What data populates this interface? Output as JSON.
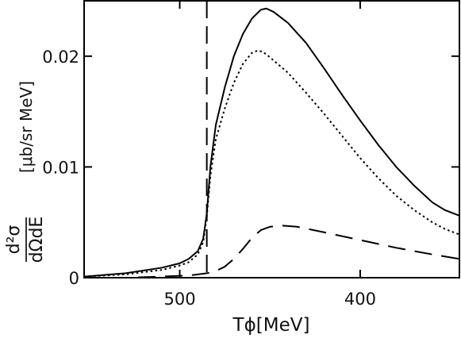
{
  "chart_data": {
    "type": "line",
    "title": "",
    "xlabel": "Tϕ[MeV]",
    "ylabel": {
      "numerator": "d²σ",
      "denominator": "dΩdE",
      "unit": "[μb/sr MeV]"
    },
    "x_reversed": true,
    "xlim": [
      553,
      345
    ],
    "ylim": [
      0,
      0.025
    ],
    "x_ticks": [
      500,
      400
    ],
    "x_tick_labels": [
      "500",
      "400"
    ],
    "y_ticks": [
      0,
      0.01,
      0.02
    ],
    "y_tick_labels": [
      "0",
      "0.01",
      "0.02"
    ],
    "vertical_marker": {
      "x": 485,
      "style": "dashed"
    },
    "grid": false,
    "series": [
      {
        "style": "solid",
        "color": "#000000",
        "points": [
          [
            553,
            0.0001
          ],
          [
            530,
            0.0004
          ],
          [
            510,
            0.0009
          ],
          [
            500,
            0.0013
          ],
          [
            495,
            0.0017
          ],
          [
            490,
            0.0024
          ],
          [
            487,
            0.0035
          ],
          [
            485,
            0.0058
          ],
          [
            483,
            0.01
          ],
          [
            480,
            0.0138
          ],
          [
            475,
            0.0172
          ],
          [
            470,
            0.02
          ],
          [
            465,
            0.022
          ],
          [
            460,
            0.0234
          ],
          [
            455,
            0.0242
          ],
          [
            452,
            0.0243
          ],
          [
            448,
            0.024
          ],
          [
            440,
            0.023
          ],
          [
            430,
            0.0212
          ],
          [
            420,
            0.0189
          ],
          [
            410,
            0.0165
          ],
          [
            400,
            0.0142
          ],
          [
            390,
            0.012
          ],
          [
            380,
            0.01
          ],
          [
            370,
            0.0083
          ],
          [
            360,
            0.0068
          ],
          [
            353,
            0.0061
          ],
          [
            345,
            0.0056
          ]
        ]
      },
      {
        "style": "dotted",
        "color": "#000000",
        "points": [
          [
            553,
            0.0001
          ],
          [
            530,
            0.0003
          ],
          [
            510,
            0.0007
          ],
          [
            500,
            0.0011
          ],
          [
            495,
            0.0014
          ],
          [
            490,
            0.0021
          ],
          [
            487,
            0.0032
          ],
          [
            485,
            0.0055
          ],
          [
            483,
            0.0092
          ],
          [
            480,
            0.0125
          ],
          [
            475,
            0.0153
          ],
          [
            470,
            0.0176
          ],
          [
            465,
            0.0193
          ],
          [
            460,
            0.0203
          ],
          [
            457,
            0.0205
          ],
          [
            454,
            0.0204
          ],
          [
            450,
            0.0199
          ],
          [
            440,
            0.0185
          ],
          [
            430,
            0.0167
          ],
          [
            420,
            0.0148
          ],
          [
            410,
            0.0128
          ],
          [
            400,
            0.0108
          ],
          [
            390,
            0.009
          ],
          [
            380,
            0.0074
          ],
          [
            370,
            0.0061
          ],
          [
            360,
            0.005
          ],
          [
            353,
            0.0044
          ],
          [
            345,
            0.0039
          ]
        ]
      },
      {
        "style": "dashed",
        "color": "#000000",
        "points": [
          [
            553,
            0.0
          ],
          [
            530,
            0.0
          ],
          [
            510,
            0.0001
          ],
          [
            495,
            0.0002
          ],
          [
            485,
            0.0004
          ],
          [
            480,
            0.0006
          ],
          [
            475,
            0.001
          ],
          [
            470,
            0.0017
          ],
          [
            465,
            0.0026
          ],
          [
            460,
            0.0036
          ],
          [
            455,
            0.0043
          ],
          [
            450,
            0.0046
          ],
          [
            443,
            0.0047
          ],
          [
            435,
            0.0046
          ],
          [
            420,
            0.0041
          ],
          [
            400,
            0.0034
          ],
          [
            380,
            0.0027
          ],
          [
            360,
            0.0021
          ],
          [
            345,
            0.0017
          ]
        ]
      }
    ]
  }
}
